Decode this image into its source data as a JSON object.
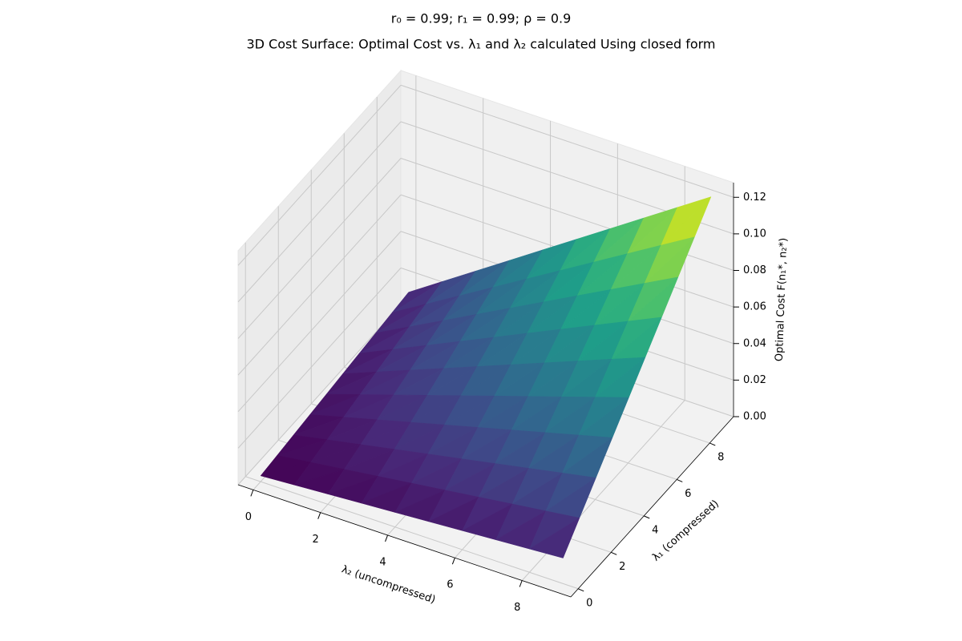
{
  "chart_data": {
    "type": "surface3d",
    "suptitle": "r₀ = 0.99; r₁ = 0.99; ρ = 0.9",
    "title": "3D Cost Surface: Optimal Cost vs. λ₁ and λ₂ calculated Using closed form",
    "x_label": "λ₂ (uncompressed)",
    "y_label": "λ₁ (compressed)",
    "z_label": "Optimal Cost F(n₁*, n₂*)",
    "x": [
      0,
      1,
      2,
      3,
      4,
      5,
      6,
      7,
      8,
      9
    ],
    "y": [
      0,
      1,
      2,
      3,
      4,
      5,
      6,
      7,
      8,
      9
    ],
    "z": [
      [
        0.0032,
        0.0044,
        0.0056,
        0.0068,
        0.008,
        0.0092,
        0.0104,
        0.0116,
        0.0128,
        0.014
      ],
      [
        0.0044,
        0.0068,
        0.0092,
        0.0116,
        0.014,
        0.0164,
        0.0188,
        0.0212,
        0.0236,
        0.026
      ],
      [
        0.0056,
        0.0092,
        0.0128,
        0.0164,
        0.02,
        0.0236,
        0.0272,
        0.0308,
        0.0344,
        0.038
      ],
      [
        0.0068,
        0.0116,
        0.0164,
        0.0212,
        0.026,
        0.0308,
        0.0356,
        0.0404,
        0.0452,
        0.05
      ],
      [
        0.008,
        0.014,
        0.02,
        0.026,
        0.032,
        0.038,
        0.044,
        0.05,
        0.056,
        0.062
      ],
      [
        0.0092,
        0.0164,
        0.0236,
        0.0308,
        0.038,
        0.0452,
        0.0524,
        0.0596,
        0.0668,
        0.074
      ],
      [
        0.0104,
        0.0188,
        0.0272,
        0.0356,
        0.044,
        0.0524,
        0.0608,
        0.0692,
        0.0776,
        0.086
      ],
      [
        0.0116,
        0.0212,
        0.0308,
        0.0404,
        0.05,
        0.0596,
        0.0692,
        0.0788,
        0.0884,
        0.098
      ],
      [
        0.0128,
        0.0236,
        0.0344,
        0.0452,
        0.056,
        0.0668,
        0.0776,
        0.0884,
        0.0992,
        0.11
      ],
      [
        0.014,
        0.026,
        0.038,
        0.05,
        0.062,
        0.074,
        0.086,
        0.098,
        0.11,
        0.122
      ]
    ],
    "colormap": "viridis",
    "xlim": [
      -0.45,
      9.45
    ],
    "ylim": [
      -0.45,
      9.45
    ],
    "zlim": [
      0,
      0.128
    ],
    "xticks": [
      0,
      2,
      4,
      6,
      8
    ],
    "yticks": [
      0,
      2,
      4,
      6,
      8
    ],
    "zticks": [
      {
        "value": 0,
        "label": "0.00"
      },
      {
        "value": 0.02,
        "label": "0.02"
      },
      {
        "value": 0.04,
        "label": "0.04"
      },
      {
        "value": 0.06,
        "label": "0.06"
      },
      {
        "value": 0.08,
        "label": "0.08"
      },
      {
        "value": 0.1,
        "label": "0.10"
      },
      {
        "value": 0.12,
        "label": "0.12"
      }
    ],
    "grid": true
  }
}
